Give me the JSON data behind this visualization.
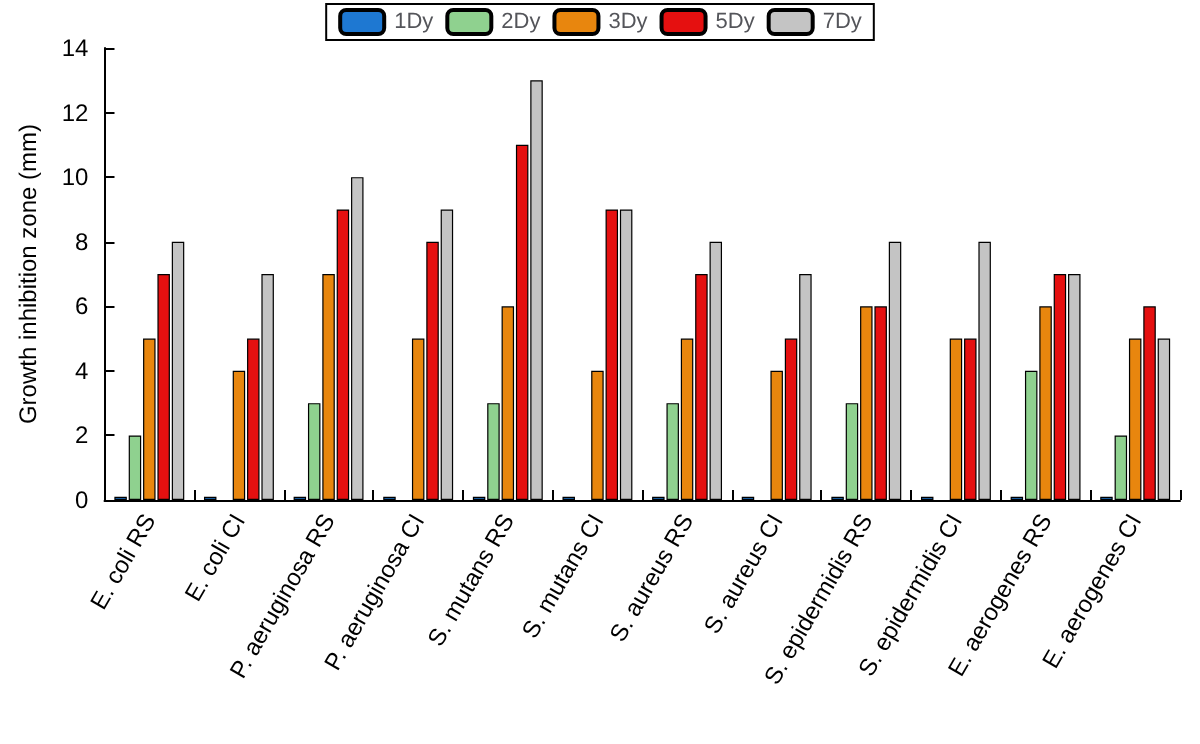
{
  "chart_data": {
    "type": "bar",
    "ylabel": "Growth inhibition zone (mm)",
    "categories": [
      "E. coli RS",
      "E. coli CI",
      "P. aeruginosa RS",
      "P. aeruginosa CI",
      "S. mutans RS",
      "S. mutans CI",
      "S. aureus RS",
      "S. aureus CI",
      "S. epidermidis RS",
      "S. epidermidis CI",
      "E. aerogenes RS",
      "E. aerogenes CI"
    ],
    "series": [
      {
        "name": "1Dy",
        "color": "#1e78d2",
        "values": [
          0.1,
          0.1,
          0.1,
          0.1,
          0.1,
          0.1,
          0.1,
          0.1,
          0.1,
          0.1,
          0.1,
          0.1
        ]
      },
      {
        "name": "2Dy",
        "color": "#8fd18f",
        "values": [
          2,
          0,
          3,
          0,
          3,
          0,
          3,
          0,
          3,
          0,
          4,
          2
        ]
      },
      {
        "name": "3Dy",
        "color": "#e8860e",
        "values": [
          5,
          4,
          7,
          5,
          6,
          4,
          5,
          4,
          6,
          5,
          6,
          5
        ]
      },
      {
        "name": "5Dy",
        "color": "#e51010",
        "values": [
          7,
          5,
          9,
          8,
          11,
          9,
          7,
          5,
          6,
          5,
          7,
          6
        ]
      },
      {
        "name": "7Dy",
        "color": "#c4c4c4",
        "values": [
          8,
          7,
          10,
          9,
          13,
          9,
          8,
          7,
          8,
          8,
          7,
          5
        ]
      }
    ],
    "ylim": [
      0,
      14
    ],
    "yticks": [
      0,
      2,
      4,
      6,
      8,
      10,
      12,
      14
    ],
    "grid": false,
    "legend": "top"
  }
}
